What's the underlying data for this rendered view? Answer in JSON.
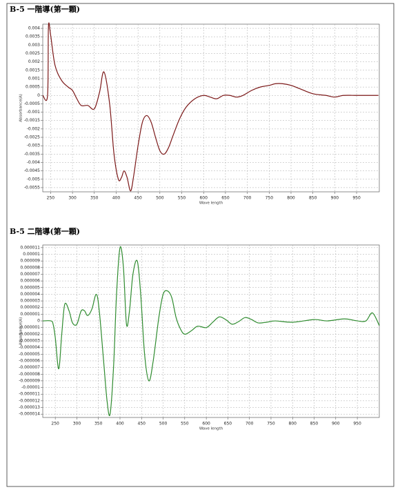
{
  "chart_data": [
    {
      "type": "line",
      "title": "B-5 一階導(第一顆)",
      "xlabel": "Wave length",
      "ylabel": "Absorbance(A)",
      "x": [
        232,
        243,
        245,
        250,
        260,
        275,
        290,
        300,
        310,
        320,
        335,
        350,
        362,
        372,
        385,
        395,
        405,
        412,
        418,
        425,
        433,
        440,
        450,
        460,
        470,
        480,
        490,
        500,
        510,
        520,
        530,
        545,
        560,
        580,
        600,
        615,
        630,
        645,
        660,
        675,
        690,
        710,
        730,
        750,
        765,
        780,
        800,
        820,
        850,
        880,
        900,
        920,
        950,
        980,
        1000
      ],
      "series": [
        {
          "color": "#7a1616",
          "values": [
            0,
            0,
            0.0041,
            0.0036,
            0.0018,
            0.0009,
            0.0005,
            0.0003,
            -0.0002,
            -0.0006,
            -0.0006,
            -0.0008,
            0.0002,
            0.0014,
            -0.0005,
            -0.0035,
            -0.005,
            -0.0049,
            -0.0045,
            -0.0049,
            -0.0057,
            -0.0048,
            -0.003,
            -0.0016,
            -0.0012,
            -0.0016,
            -0.0025,
            -0.0033,
            -0.0035,
            -0.0031,
            -0.0024,
            -0.0014,
            -0.0007,
            -0.0002,
            0,
            -0.0001,
            -0.0002,
            0,
            0,
            -0.0001,
            0,
            0.0003,
            0.0005,
            0.0006,
            0.0007,
            0.0007,
            0.0006,
            0.0004,
            0.0001,
            0,
            -0.0001,
            0,
            0,
            0,
            0
          ]
        }
      ],
      "xlim": [
        232,
        1002
      ],
      "xticks": [
        250,
        300,
        350,
        400,
        450,
        500,
        550,
        600,
        650,
        700,
        750,
        800,
        850,
        900,
        950
      ],
      "ylim": [
        0.00425,
        -0.00575
      ],
      "yticks": [
        0.004,
        0.0035,
        0.003,
        0.0025,
        0.002,
        0.0015,
        0.001,
        0.0005,
        0,
        -0.0005,
        -0.001,
        -0.0015,
        -0.002,
        -0.0025,
        -0.003,
        -0.0035,
        -0.004,
        -0.0045,
        -0.005,
        -0.0055
      ],
      "grid": true
    },
    {
      "type": "line",
      "title": "B-5 二階導(第一顆)",
      "xlabel": "Wave length",
      "ylabel": "Absorbance(A)",
      "x": [
        221,
        240,
        245,
        250,
        258,
        265,
        272,
        282,
        290,
        300,
        310,
        318,
        325,
        335,
        345,
        352,
        362,
        370,
        377,
        385,
        392,
        400,
        408,
        415,
        422,
        430,
        440,
        448,
        457,
        467,
        477,
        490,
        500,
        510,
        520,
        530,
        540,
        550,
        565,
        580,
        600,
        615,
        630,
        645,
        660,
        675,
        690,
        705,
        720,
        740,
        760,
        800,
        850,
        880,
        920,
        950,
        970,
        985,
        1001
      ],
      "series": [
        {
          "color": "#2e8b2e",
          "values": [
            0,
            0,
            -5e-07,
            -2.5e-06,
            -7.2e-06,
            -2e-06,
            2.5e-06,
            1.5e-06,
            -3e-07,
            -5e-07,
            1.5e-06,
            1.5e-06,
            8e-07,
            1.8e-06,
            4e-06,
            1.5e-06,
            -6e-06,
            -1.2e-05,
            -1.4e-05,
            -7e-06,
            4e-06,
            1.1e-05,
            8e-06,
            -5e-07,
            1.5e-06,
            7e-06,
            9e-06,
            4e-06,
            -5e-06,
            -9e-06,
            -6e-06,
            5e-07,
            4e-06,
            4.5e-06,
            3.5e-06,
            5e-07,
            -1.2e-06,
            -2e-06,
            -1.5e-06,
            -8e-07,
            -1e-06,
            -2e-07,
            6e-07,
            2e-07,
            -5e-07,
            -1e-07,
            5e-07,
            2e-07,
            -3e-07,
            -2e-07,
            0,
            -2e-07,
            2e-07,
            0,
            3e-07,
            0,
            0,
            1.2e-06,
            -7e-07
          ]
        }
      ],
      "xlim": [
        221,
        1001
      ],
      "xticks": [
        250,
        300,
        350,
        400,
        450,
        500,
        550,
        600,
        650,
        700,
        750,
        800,
        850,
        900,
        950
      ],
      "ylim": [
        1.14e-05,
        -1.45e-05
      ],
      "yticks": [
        1.1e-05,
        1e-05,
        9e-06,
        8e-06,
        7e-06,
        6e-06,
        5e-06,
        4e-06,
        3e-06,
        2e-06,
        1e-06,
        0,
        -1e-06,
        -2e-06,
        -3e-06,
        -4e-06,
        -5e-06,
        -6e-06,
        -7e-06,
        -8e-06,
        -9e-06,
        -1e-05,
        -1.1e-05,
        -1.2e-05,
        -1.3e-05,
        -1.4e-05
      ],
      "grid": true
    }
  ]
}
